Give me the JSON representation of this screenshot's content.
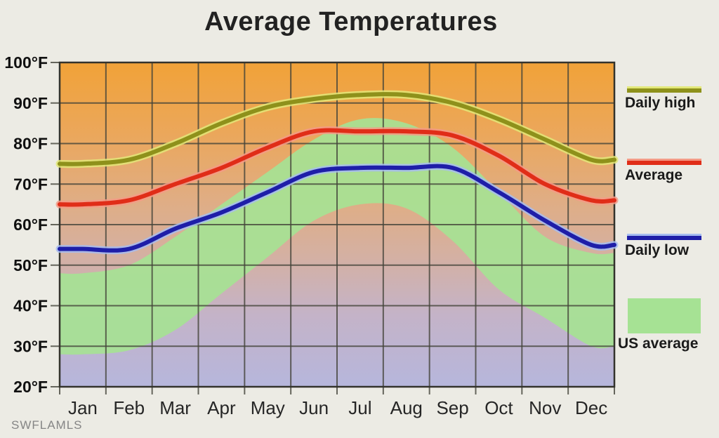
{
  "title": "Average Temperatures",
  "watermark": "SWFLAMLS",
  "legend": {
    "items": [
      {
        "label": "Daily high",
        "type": "line",
        "color": "#8e911b",
        "halo": "#e2e878"
      },
      {
        "label": "Average",
        "type": "line",
        "color": "#e02d18",
        "halo": "#f49a86"
      },
      {
        "label": "Daily low",
        "type": "line",
        "color": "#1e1ea8",
        "halo": "#a6bcf0"
      },
      {
        "label": "US average",
        "type": "area",
        "color": "#a6e294"
      }
    ]
  },
  "chart_data": {
    "type": "line",
    "title": "Average Temperatures",
    "categories": [
      "Jan",
      "Feb",
      "Mar",
      "Apr",
      "May",
      "Jun",
      "Jul",
      "Aug",
      "Sep",
      "Oct",
      "Nov",
      "Dec"
    ],
    "ylim": [
      20,
      100
    ],
    "y_step": 10,
    "y_tick_labels": [
      "100°F",
      "90°F",
      "80°F",
      "70°F",
      "60°F",
      "50°F",
      "40°F",
      "30°F",
      "20°F"
    ],
    "grid": true,
    "legend_position": "right",
    "series": [
      {
        "name": "Daily high",
        "color": "#8e911b",
        "halo": "#e2e878",
        "values": [
          75,
          76,
          80,
          85,
          89,
          91,
          92,
          92,
          90,
          86,
          81,
          76
        ]
      },
      {
        "name": "Average",
        "color": "#e02d18",
        "halo": "#f49a86",
        "values": [
          65,
          66,
          70,
          74,
          79,
          83,
          83,
          83,
          82,
          77,
          70,
          66
        ]
      },
      {
        "name": "Daily low",
        "color": "#1e1ea8",
        "halo": "#a6bcf0",
        "values": [
          54,
          54,
          59,
          63,
          68,
          73,
          74,
          74,
          74,
          68,
          61,
          55
        ]
      }
    ],
    "band": {
      "name": "US average",
      "color": "#a6e294",
      "opacity": 0.92,
      "upper": [
        48,
        50,
        57,
        65,
        73,
        81,
        86,
        85,
        79,
        68,
        57,
        53
      ],
      "lower": [
        28,
        29,
        34,
        43,
        52,
        61,
        65,
        64,
        56,
        44,
        37,
        30
      ]
    },
    "background_gradient": [
      {
        "offset": 0.0,
        "color": "#f1a238"
      },
      {
        "offset": 0.22,
        "color": "#eba75b"
      },
      {
        "offset": 0.42,
        "color": "#e0ad83"
      },
      {
        "offset": 0.6,
        "color": "#d4b0a3"
      },
      {
        "offset": 0.78,
        "color": "#c4b3c8"
      },
      {
        "offset": 1.0,
        "color": "#b6b6dc"
      }
    ],
    "grid_color": "#44443a",
    "frame_color": "#33332c",
    "tick_label_color": "#101010",
    "x_label_color": "#262626"
  }
}
